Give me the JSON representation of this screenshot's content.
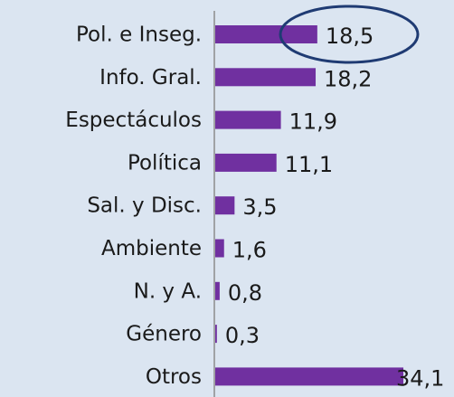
{
  "chart_data": {
    "type": "bar",
    "orientation": "horizontal",
    "categories": [
      "Pol. e Inseg.",
      "Info. Gral.",
      "Espectáculos",
      "Política",
      "Sal. y Disc.",
      "Ambiente",
      "N. y A.",
      "Género",
      "Otros"
    ],
    "values": [
      18.5,
      18.2,
      11.9,
      11.1,
      3.5,
      1.6,
      0.8,
      0.3,
      34.1
    ],
    "value_labels": [
      "18,5",
      "18,2",
      "11,9",
      "11,1",
      "3,5",
      "1,6",
      "0,8",
      "0,3",
      "34,1"
    ],
    "color": "#7030a0"
  }
}
